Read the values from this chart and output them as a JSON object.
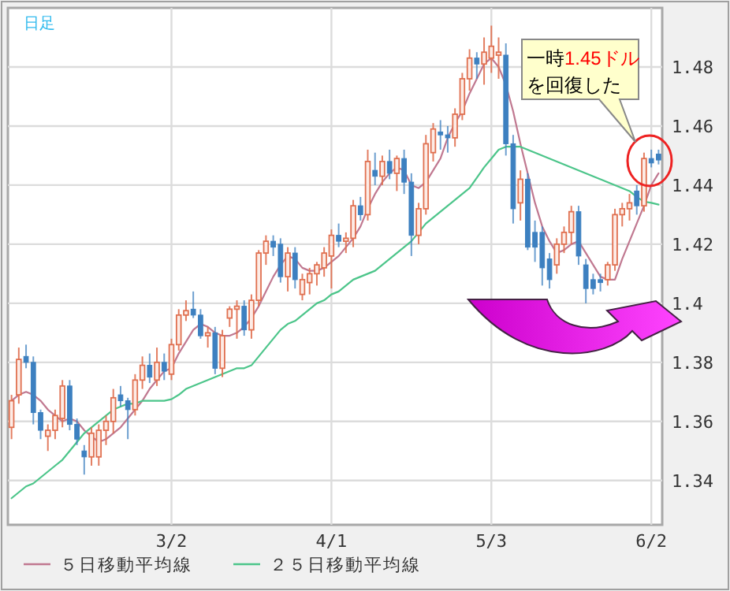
{
  "chart_data": {
    "type": "candlestick",
    "title": "日足",
    "categories": [
      null,
      null,
      null,
      null,
      null,
      null,
      null,
      null,
      null,
      null,
      null,
      null,
      null,
      null,
      null,
      null,
      null,
      null,
      null,
      null,
      null,
      null,
      "3/2",
      null,
      null,
      null,
      null,
      null,
      null,
      null,
      null,
      null,
      null,
      null,
      null,
      null,
      null,
      null,
      null,
      null,
      null,
      null,
      null,
      null,
      "4/1",
      null,
      null,
      null,
      null,
      null,
      null,
      null,
      null,
      null,
      null,
      null,
      null,
      null,
      null,
      null,
      null,
      null,
      null,
      null,
      null,
      null,
      "5/3",
      null,
      null,
      null,
      null,
      null,
      null,
      null,
      null,
      null,
      null,
      null,
      null,
      null,
      null,
      null,
      null,
      null,
      null,
      null,
      null,
      null,
      "6/2",
      null
    ],
    "ohlc": [
      [
        1.358,
        1.369,
        1.354,
        1.367
      ],
      [
        1.369,
        1.385,
        1.366,
        1.381
      ],
      [
        1.382,
        1.386,
        1.378,
        1.38
      ],
      [
        1.38,
        1.382,
        1.359,
        1.363
      ],
      [
        1.363,
        1.364,
        1.354,
        1.357
      ],
      [
        1.355,
        1.359,
        1.35,
        1.357
      ],
      [
        1.357,
        1.364,
        1.354,
        1.362
      ],
      [
        1.361,
        1.374,
        1.358,
        1.372
      ],
      [
        1.372,
        1.374,
        1.357,
        1.359
      ],
      [
        1.359,
        1.361,
        1.352,
        1.354
      ],
      [
        1.35,
        1.352,
        1.342,
        1.348
      ],
      [
        1.348,
        1.358,
        1.345,
        1.356
      ],
      [
        1.348,
        1.359,
        1.345,
        1.357
      ],
      [
        1.357,
        1.362,
        1.352,
        1.36
      ],
      [
        1.36,
        1.371,
        1.356,
        1.368
      ],
      [
        1.369,
        1.372,
        1.365,
        1.367
      ],
      [
        1.367,
        1.368,
        1.354,
        1.364
      ],
      [
        1.364,
        1.376,
        1.362,
        1.374
      ],
      [
        1.374,
        1.382,
        1.371,
        1.379
      ],
      [
        1.379,
        1.383,
        1.373,
        1.375
      ],
      [
        1.374,
        1.385,
        1.372,
        1.38
      ],
      [
        1.38,
        1.383,
        1.374,
        1.377
      ],
      [
        1.376,
        1.388,
        1.374,
        1.386
      ],
      [
        1.386,
        1.398,
        1.384,
        1.396
      ],
      [
        1.396,
        1.401,
        1.394,
        1.3975
      ],
      [
        1.398,
        1.404,
        1.395,
        1.396
      ],
      [
        1.396,
        1.398,
        1.388,
        1.389
      ],
      [
        1.389,
        1.392,
        1.385,
        1.39
      ],
      [
        1.39,
        1.392,
        1.376,
        1.378
      ],
      [
        1.378,
        1.391,
        1.375,
        1.389
      ],
      [
        1.395,
        1.399,
        1.392,
        1.398
      ],
      [
        1.398,
        1.401,
        1.388,
        1.399
      ],
      [
        1.399,
        1.401,
        1.389,
        1.391
      ],
      [
        1.391,
        1.403,
        1.388,
        1.401
      ],
      [
        1.401,
        1.418,
        1.399,
        1.417
      ],
      [
        1.417,
        1.423,
        1.413,
        1.421
      ],
      [
        1.421,
        1.423,
        1.416,
        1.419
      ],
      [
        1.42,
        1.422,
        1.407,
        1.409
      ],
      [
        1.409,
        1.419,
        1.404,
        1.417
      ],
      [
        1.417,
        1.419,
        1.405,
        1.408
      ],
      [
        1.403,
        1.41,
        1.401,
        1.408
      ],
      [
        1.407,
        1.412,
        1.403,
        1.41
      ],
      [
        1.41,
        1.414,
        1.406,
        1.413
      ],
      [
        1.412,
        1.419,
        1.409,
        1.417
      ],
      [
        1.416,
        1.425,
        1.405,
        1.423
      ],
      [
        1.423,
        1.427,
        1.419,
        1.421
      ],
      [
        1.421,
        1.424,
        1.417,
        1.422
      ],
      [
        1.422,
        1.435,
        1.419,
        1.433
      ],
      [
        1.433,
        1.436,
        1.428,
        1.43
      ],
      [
        1.43,
        1.452,
        1.428,
        1.448
      ],
      [
        1.445,
        1.451,
        1.44,
        1.443
      ],
      [
        1.443,
        1.45,
        1.44,
        1.448
      ],
      [
        1.448,
        1.452,
        1.442,
        1.444
      ],
      [
        1.444,
        1.45,
        1.438,
        1.449
      ],
      [
        1.449,
        1.452,
        1.437,
        1.441
      ],
      [
        1.441,
        1.444,
        1.416,
        1.423
      ],
      [
        1.423,
        1.434,
        1.42,
        1.432
      ],
      [
        1.432,
        1.457,
        1.43,
        1.454
      ],
      [
        1.451,
        1.461,
        1.448,
        1.459
      ],
      [
        1.458,
        1.462,
        1.452,
        1.457
      ],
      [
        1.457,
        1.46,
        1.451,
        1.456
      ],
      [
        1.456,
        1.466,
        1.453,
        1.464
      ],
      [
        1.464,
        1.478,
        1.462,
        1.476
      ],
      [
        1.476,
        1.486,
        1.472,
        1.483
      ],
      [
        1.483,
        1.485,
        1.476,
        1.481
      ],
      [
        1.481,
        1.49,
        1.474,
        1.485
      ],
      [
        1.483,
        1.494,
        1.478,
        1.487
      ],
      [
        1.484,
        1.49,
        1.476,
        1.485
      ],
      [
        1.484,
        1.488,
        1.45,
        1.454
      ],
      [
        1.454,
        1.457,
        1.427,
        1.432
      ],
      [
        1.434,
        1.445,
        1.428,
        1.442
      ],
      [
        1.442,
        1.444,
        1.418,
        1.419
      ],
      [
        1.424,
        1.428,
        1.414,
        1.419
      ],
      [
        1.424,
        1.426,
        1.406,
        1.412
      ],
      [
        1.415,
        1.417,
        1.405,
        1.408
      ],
      [
        1.413,
        1.422,
        1.41,
        1.42
      ],
      [
        1.42,
        1.426,
        1.417,
        1.424
      ],
      [
        1.424,
        1.433,
        1.42,
        1.431
      ],
      [
        1.431,
        1.433,
        1.413,
        1.416
      ],
      [
        1.413,
        1.415,
        1.4,
        1.405
      ],
      [
        1.408,
        1.41,
        1.403,
        1.405
      ],
      [
        1.408,
        1.41,
        1.404,
        1.407
      ],
      [
        1.408,
        1.414,
        1.406,
        1.413
      ],
      [
        1.413,
        1.432,
        1.411,
        1.43
      ],
      [
        1.43,
        1.434,
        1.426,
        1.432
      ],
      [
        1.432,
        1.437,
        1.428,
        1.434
      ],
      [
        1.438,
        1.44,
        1.43,
        1.433
      ],
      [
        1.433,
        1.451,
        1.431,
        1.449
      ],
      [
        1.449,
        1.452,
        1.446,
        1.4475
      ],
      [
        1.4505,
        1.452,
        1.447,
        1.4485
      ]
    ],
    "colors": [
      "#e07050",
      "#e07050",
      "#3d80c0",
      "#3d80c0",
      "#3d80c0",
      "#e07050",
      "#e07050",
      "#e07050",
      "#3d80c0",
      "#3d80c0",
      "#3d80c0",
      "#e07050",
      "#e07050",
      "#e07050",
      "#e07050",
      "#3d80c0",
      "#3d80c0",
      "#e07050",
      "#e07050",
      "#3d80c0",
      "#e07050",
      "#3d80c0",
      "#e07050",
      "#e07050",
      "#e07050",
      "#3d80c0",
      "#3d80c0",
      "#e07050",
      "#3d80c0",
      "#e07050",
      "#e07050",
      "#e07050",
      "#3d80c0",
      "#e07050",
      "#e07050",
      "#e07050",
      "#3d80c0",
      "#3d80c0",
      "#e07050",
      "#3d80c0",
      "#e07050",
      "#e07050",
      "#e07050",
      "#e07050",
      "#e07050",
      "#3d80c0",
      "#e07050",
      "#e07050",
      "#3d80c0",
      "#e07050",
      "#3d80c0",
      "#e07050",
      "#3d80c0",
      "#e07050",
      "#3d80c0",
      "#3d80c0",
      "#e07050",
      "#e07050",
      "#e07050",
      "#3d80c0",
      "#3d80c0",
      "#e07050",
      "#e07050",
      "#e07050",
      "#3d80c0",
      "#e07050",
      "#e07050",
      "#e07050",
      "#3d80c0",
      "#3d80c0",
      "#e07050",
      "#3d80c0",
      "#3d80c0",
      "#3d80c0",
      "#3d80c0",
      "#e07050",
      "#e07050",
      "#e07050",
      "#3d80c0",
      "#3d80c0",
      "#3d80c0",
      "#3d80c0",
      "#e07050",
      "#e07050",
      "#e07050",
      "#e07050",
      "#3d80c0",
      "#e07050",
      "#3d80c0",
      "#3d80c0"
    ],
    "series": [
      {
        "name": "５日移動平均線",
        "type": "line",
        "color": "#c07890",
        "values": [
          1.367,
          1.369,
          1.37,
          1.369,
          1.367,
          1.364,
          1.362,
          1.36,
          1.361,
          1.36,
          1.357,
          1.355,
          1.353,
          1.354,
          1.356,
          1.358,
          1.361,
          1.364,
          1.367,
          1.371,
          1.374,
          1.377,
          1.378,
          1.383,
          1.387,
          1.391,
          1.393,
          1.392,
          1.39,
          1.389,
          1.389,
          1.39,
          1.392,
          1.395,
          1.399,
          1.404,
          1.409,
          1.413,
          1.416,
          1.415,
          1.412,
          1.411,
          1.411,
          1.412,
          1.414,
          1.416,
          1.419,
          1.422,
          1.426,
          1.432,
          1.437,
          1.441,
          1.444,
          1.446,
          1.445,
          1.44,
          1.439,
          1.441,
          1.445,
          1.449,
          1.456,
          1.461,
          1.465,
          1.471,
          1.476,
          1.481,
          1.483,
          1.48,
          1.474,
          1.465,
          1.454,
          1.444,
          1.434,
          1.426,
          1.421,
          1.417,
          1.418,
          1.42,
          1.421,
          1.417,
          1.413,
          1.409,
          1.408,
          1.408,
          1.415,
          1.421,
          1.427,
          1.433,
          1.44,
          1.444
        ]
      },
      {
        "name": "２５日移動平均線",
        "type": "line",
        "color": "#4cc58a",
        "values": [
          1.334,
          1.336,
          1.338,
          1.339,
          1.341,
          1.343,
          1.345,
          1.347,
          1.35,
          1.353,
          1.356,
          1.358,
          1.36,
          1.362,
          1.364,
          1.365,
          1.366,
          1.366,
          1.367,
          1.367,
          1.367,
          1.367,
          1.3675,
          1.369,
          1.371,
          1.372,
          1.373,
          1.374,
          1.375,
          1.376,
          1.377,
          1.378,
          1.378,
          1.379,
          1.382,
          1.385,
          1.388,
          1.391,
          1.393,
          1.394,
          1.396,
          1.398,
          1.4,
          1.401,
          1.403,
          1.404,
          1.406,
          1.408,
          1.409,
          1.41,
          1.411,
          1.413,
          1.415,
          1.417,
          1.419,
          1.421,
          1.424,
          1.427,
          1.429,
          1.431,
          1.433,
          1.435,
          1.437,
          1.439,
          1.4425,
          1.446,
          1.449,
          1.452,
          1.453,
          1.453,
          1.453,
          1.452,
          1.451,
          1.45,
          1.449,
          1.448,
          1.447,
          1.446,
          1.445,
          1.444,
          1.443,
          1.442,
          1.441,
          1.44,
          1.439,
          1.438,
          1.436,
          1.4344,
          1.434,
          1.4334
        ]
      }
    ],
    "ylim": [
      1.325,
      1.5
    ],
    "yticks": [
      1.34,
      1.36,
      1.38,
      1.4,
      1.42,
      1.44,
      1.46,
      1.48
    ],
    "grid": true,
    "legend": "bottom",
    "annotations": [
      "一時1.45ドルを回復した"
    ]
  }
}
